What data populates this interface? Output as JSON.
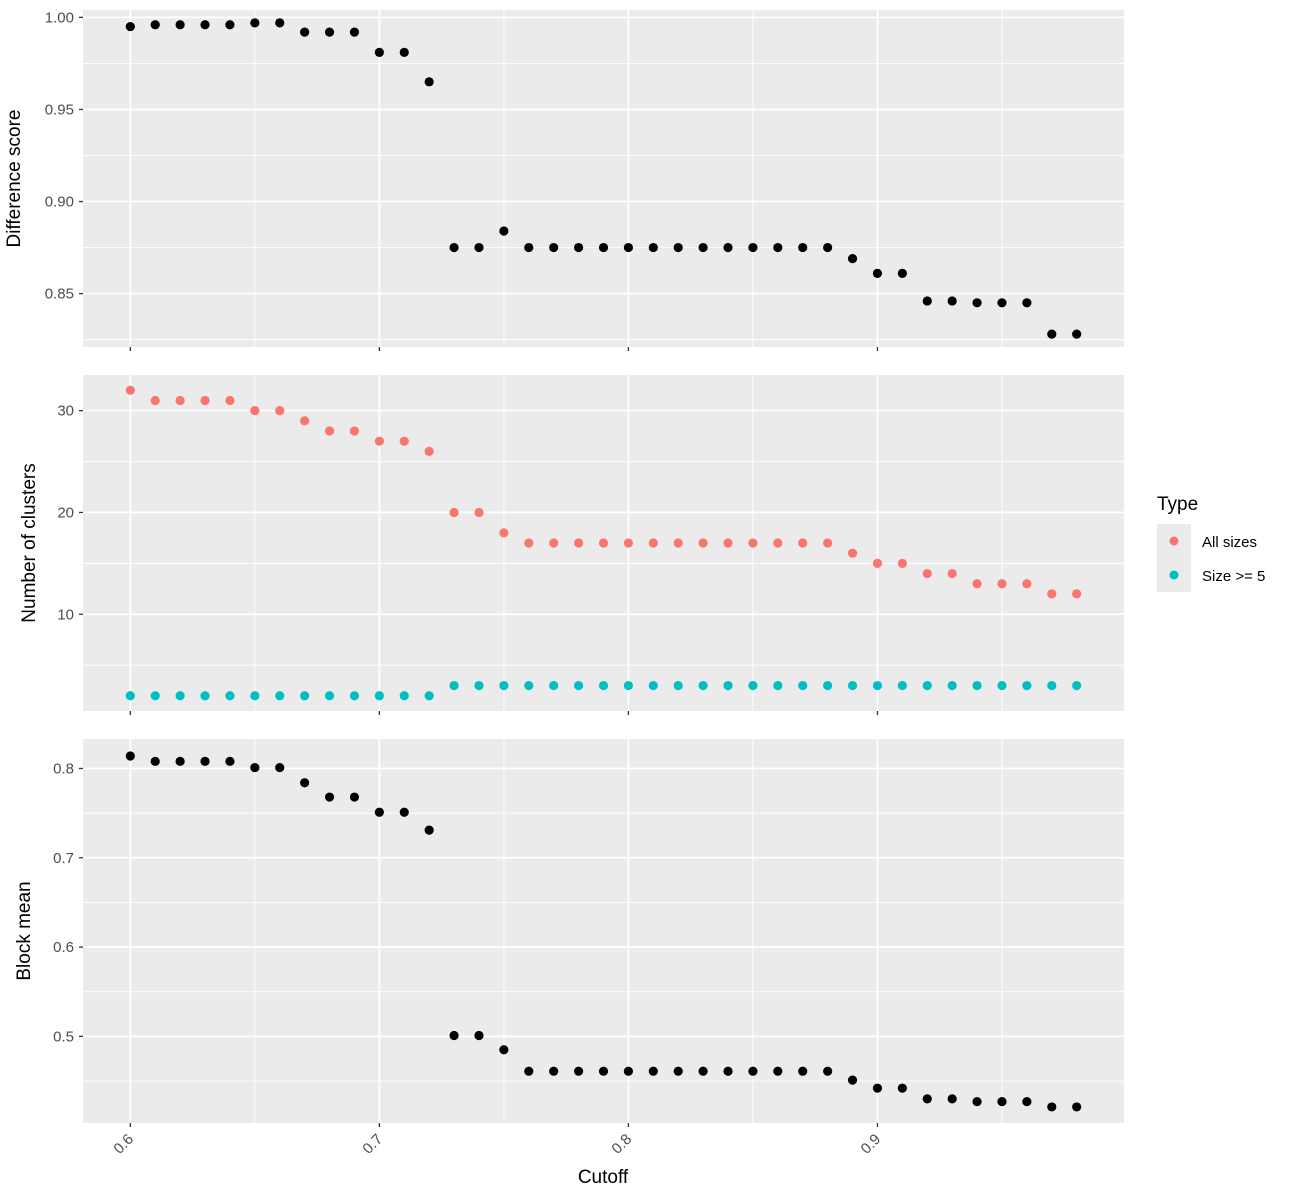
{
  "colors": {
    "panel_bg": "#EBEBEB",
    "grid": "#FFFFFF",
    "point_default": "#000000",
    "all_sizes": "#F8766D",
    "size_ge_5": "#00BFC4"
  },
  "legend": {
    "title": "Type",
    "items": [
      {
        "label": "All sizes",
        "color": "#F8766D"
      },
      {
        "label": "Size >= 5",
        "color": "#00BFC4"
      }
    ]
  },
  "x_axis": {
    "title": "Cutoff",
    "ticks": [
      0.6,
      0.7,
      0.8,
      0.9
    ],
    "tick_labels": [
      "0.6",
      "0.7",
      "0.8",
      "0.9"
    ],
    "range": [
      0.581,
      0.999
    ]
  },
  "chart_data": [
    {
      "type": "scatter",
      "ylabel": "Difference score",
      "ylim": [
        0.821,
        1.004
      ],
      "yticks": [
        0.85,
        0.9,
        0.95,
        1.0
      ],
      "ytick_labels": [
        "0.85",
        "0.90",
        "0.95",
        "1.00"
      ],
      "x": [
        0.6,
        0.61,
        0.62,
        0.63,
        0.64,
        0.65,
        0.66,
        0.67,
        0.68,
        0.69,
        0.7,
        0.71,
        0.72,
        0.73,
        0.74,
        0.75,
        0.76,
        0.77,
        0.78,
        0.79,
        0.8,
        0.81,
        0.82,
        0.83,
        0.84,
        0.85,
        0.86,
        0.87,
        0.88,
        0.89,
        0.9,
        0.91,
        0.92,
        0.93,
        0.94,
        0.95,
        0.96,
        0.97,
        0.98
      ],
      "series": [
        {
          "values": [
            0.995,
            0.996,
            0.996,
            0.996,
            0.996,
            0.997,
            0.997,
            0.992,
            0.992,
            0.992,
            0.981,
            0.981,
            0.965,
            0.875,
            0.875,
            0.884,
            0.875,
            0.875,
            0.875,
            0.875,
            0.875,
            0.875,
            0.875,
            0.875,
            0.875,
            0.875,
            0.875,
            0.875,
            0.875,
            0.869,
            0.861,
            0.861,
            0.846,
            0.846,
            0.845,
            0.845,
            0.845,
            0.828,
            0.828
          ],
          "color": "#000000"
        }
      ],
      "grid": true
    },
    {
      "type": "scatter",
      "ylabel": "Number of clusters",
      "ylim": [
        0.5,
        33.5
      ],
      "yticks": [
        10,
        20,
        30
      ],
      "ytick_labels": [
        "10",
        "20",
        "30"
      ],
      "x": [
        0.6,
        0.61,
        0.62,
        0.63,
        0.64,
        0.65,
        0.66,
        0.67,
        0.68,
        0.69,
        0.7,
        0.71,
        0.72,
        0.73,
        0.74,
        0.75,
        0.76,
        0.77,
        0.78,
        0.79,
        0.8,
        0.81,
        0.82,
        0.83,
        0.84,
        0.85,
        0.86,
        0.87,
        0.88,
        0.89,
        0.9,
        0.91,
        0.92,
        0.93,
        0.94,
        0.95,
        0.96,
        0.97,
        0.98
      ],
      "series": [
        {
          "name": "All sizes",
          "color": "#F8766D",
          "values": [
            32,
            31,
            31,
            31,
            31,
            30,
            30,
            29,
            28,
            28,
            27,
            27,
            26,
            20,
            20,
            18,
            17,
            17,
            17,
            17,
            17,
            17,
            17,
            17,
            17,
            17,
            17,
            17,
            17,
            16,
            15,
            15,
            14,
            14,
            13,
            13,
            13,
            12,
            12
          ]
        },
        {
          "name": "Size >= 5",
          "color": "#00BFC4",
          "values": [
            2,
            2,
            2,
            2,
            2,
            2,
            2,
            2,
            2,
            2,
            2,
            2,
            2,
            3,
            3,
            3,
            3,
            3,
            3,
            3,
            3,
            3,
            3,
            3,
            3,
            3,
            3,
            3,
            3,
            3,
            3,
            3,
            3,
            3,
            3,
            3,
            3,
            3,
            3
          ]
        }
      ],
      "grid": true
    },
    {
      "type": "scatter",
      "ylabel": "Block mean",
      "xlabel": "Cutoff",
      "ylim": [
        0.403,
        0.833
      ],
      "yticks": [
        0.5,
        0.6,
        0.7,
        0.8
      ],
      "ytick_labels": [
        "0.5",
        "0.6",
        "0.7",
        "0.8"
      ],
      "x": [
        0.6,
        0.61,
        0.62,
        0.63,
        0.64,
        0.65,
        0.66,
        0.67,
        0.68,
        0.69,
        0.7,
        0.71,
        0.72,
        0.73,
        0.74,
        0.75,
        0.76,
        0.77,
        0.78,
        0.79,
        0.8,
        0.81,
        0.82,
        0.83,
        0.84,
        0.85,
        0.86,
        0.87,
        0.88,
        0.89,
        0.9,
        0.91,
        0.92,
        0.93,
        0.94,
        0.95,
        0.96,
        0.97,
        0.98
      ],
      "series": [
        {
          "values": [
            0.814,
            0.808,
            0.808,
            0.808,
            0.808,
            0.801,
            0.801,
            0.784,
            0.768,
            0.768,
            0.751,
            0.751,
            0.731,
            0.501,
            0.501,
            0.485,
            0.461,
            0.461,
            0.461,
            0.461,
            0.461,
            0.461,
            0.461,
            0.461,
            0.461,
            0.461,
            0.461,
            0.461,
            0.461,
            0.451,
            0.442,
            0.442,
            0.43,
            0.43,
            0.427,
            0.427,
            0.427,
            0.421,
            0.421
          ],
          "color": "#000000"
        }
      ],
      "grid": true
    }
  ]
}
